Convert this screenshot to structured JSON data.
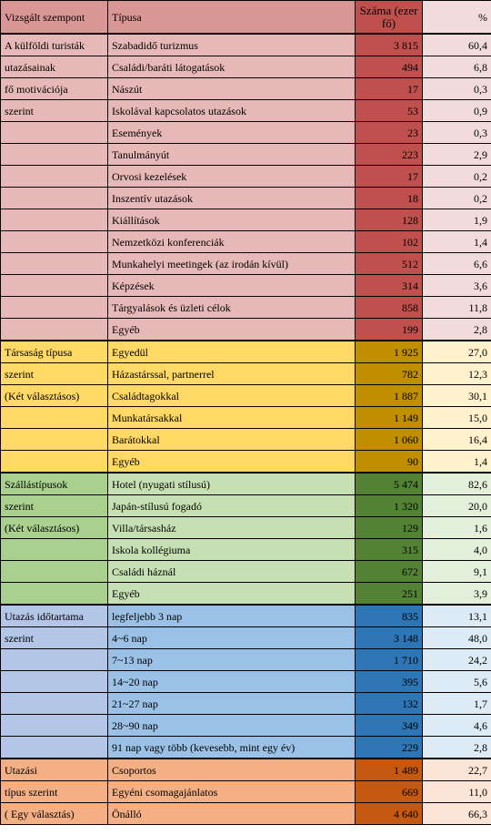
{
  "header": {
    "criterion": "Vizsgált szempont",
    "type": "Típusa",
    "count": "Száma (ezer fő)",
    "pct": "%"
  },
  "groups": [
    {
      "labels": [
        "A külföldi turisták",
        "utazásainak",
        "fő motivációja",
        " szerint"
      ],
      "rows": [
        {
          "type": "Szabadidő turizmus",
          "count": "3 815",
          "pct": "60,4"
        },
        {
          "type": "Családi/baráti látogatások",
          "count": "494",
          "pct": "6,8"
        },
        {
          "type": "Nászút",
          "count": "17",
          "pct": "0,3"
        },
        {
          "type": "Iskolával kapcsolatos utazások",
          "count": "53",
          "pct": "0,9"
        },
        {
          "type": "Események",
          "count": "23",
          "pct": "0,3"
        },
        {
          "type": "Tanulmányút",
          "count": "223",
          "pct": "2,9"
        },
        {
          "type": "Orvosi kezelések",
          "count": "17",
          "pct": "0,2"
        },
        {
          "type": "Inszentív utazások",
          "count": "18",
          "pct": "0,2"
        },
        {
          "type": "Kiállítások",
          "count": "128",
          "pct": "1,9"
        },
        {
          "type": "Nemzetközi konferenciák",
          "count": "102",
          "pct": "1,4"
        },
        {
          "type": "Munkahelyi meetingek (az irodán kívül)",
          "count": "512",
          "pct": "6,6"
        },
        {
          "type": "Képzések",
          "count": "314",
          "pct": "3,6"
        },
        {
          "type": "Tárgyalások és üzleti célok",
          "count": "858",
          "pct": "11,8"
        },
        {
          "type": "Egyéb",
          "count": "199",
          "pct": "2,8"
        }
      ]
    },
    {
      "labels": [
        "Társaság típusa",
        "szerint",
        "(Két választásos)"
      ],
      "rows": [
        {
          "type": "Egyedül",
          "count": "1 925",
          "pct": "27,0"
        },
        {
          "type": "Házastárssal, partnerrel",
          "count": "782",
          "pct": "12,3"
        },
        {
          "type": "Családtagokkal",
          "count": "1 887",
          "pct": "30,1"
        },
        {
          "type": "Munkatársakkal",
          "count": "1 149",
          "pct": "15,0"
        },
        {
          "type": "Barátokkal",
          "count": "1 060",
          "pct": "16,4"
        },
        {
          "type": "Egyéb",
          "count": "90",
          "pct": "1,4"
        }
      ]
    },
    {
      "labels": [
        "Szállástípusok",
        "szerint",
        "(Két választásos)"
      ],
      "rows": [
        {
          "type": "Hotel (nyugati stílusú)",
          "count": "5 474",
          "pct": "82,6"
        },
        {
          "type": "Japán-stílusú fogadó",
          "count": "1 320",
          "pct": "20,0"
        },
        {
          "type": "Villa/társasház",
          "count": "129",
          "pct": "1,6"
        },
        {
          "type": "Iskola kollégiuma",
          "count": "315",
          "pct": "4,0"
        },
        {
          "type": "Családi háznál",
          "count": "672",
          "pct": "9,1"
        },
        {
          "type": "Egyéb",
          "count": "251",
          "pct": "3,9"
        }
      ]
    },
    {
      "labels": [
        "Utazás időtartama",
        " szerint"
      ],
      "rows": [
        {
          "type": "legfeljebb 3 nap",
          "count": "835",
          "pct": "13,1"
        },
        {
          "type": "4~6 nap",
          "count": "3 148",
          "pct": "48,0"
        },
        {
          "type": "7~13 nap",
          "count": "1 710",
          "pct": "24,2"
        },
        {
          "type": "14~20 nap",
          "count": "395",
          "pct": "5,6"
        },
        {
          "type": "21~27 nap",
          "count": "132",
          "pct": "1,7"
        },
        {
          "type": "28~90 nap",
          "count": "349",
          "pct": "4,6"
        },
        {
          "type": "91 nap vagy több (kevesebb, mint egy év)",
          "count": "229",
          "pct": "2,8"
        }
      ]
    },
    {
      "labels": [
        "Utazási",
        "típus szerint",
        "( Egy választás)"
      ],
      "rows": [
        {
          "type": "Csoportos",
          "count": "1 489",
          "pct": "22,7"
        },
        {
          "type": "Egyéni csomagajánlatos",
          "count": "669",
          "pct": "11,0"
        },
        {
          "type": "Önálló",
          "count": "4 640",
          "pct": "66,3"
        }
      ]
    }
  ]
}
